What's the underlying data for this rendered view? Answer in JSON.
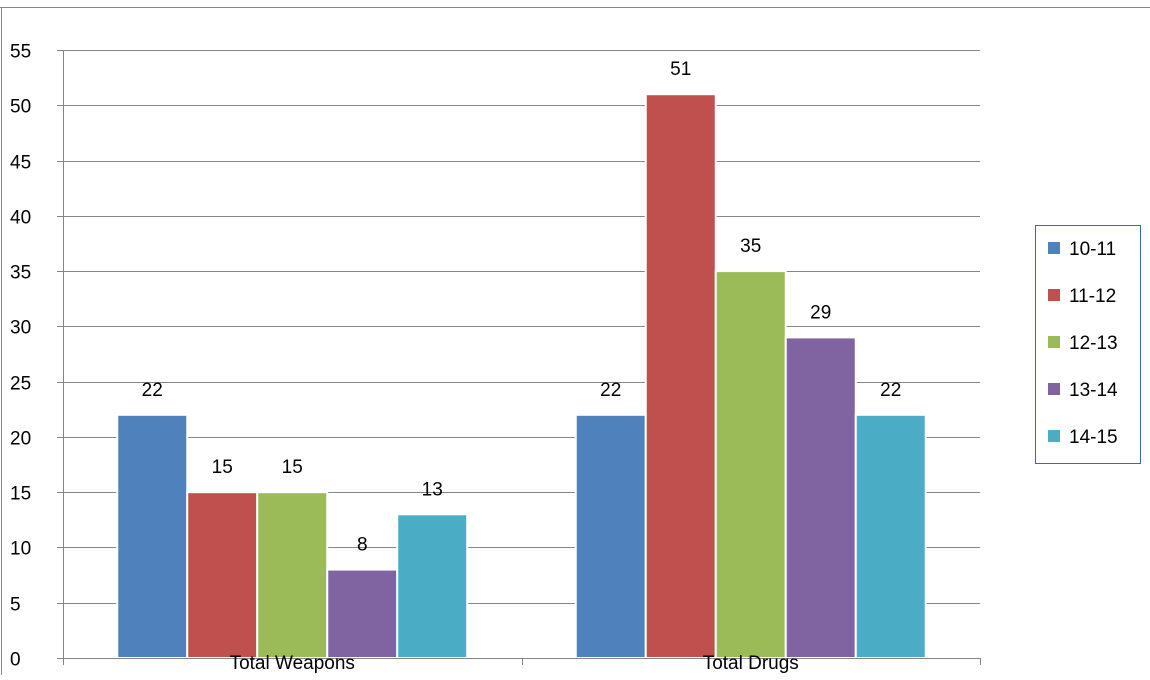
{
  "chart_data": {
    "type": "bar",
    "title": "",
    "xlabel": "",
    "ylabel": "",
    "categories": [
      "Total Weapons",
      "Total Drugs"
    ],
    "series": [
      {
        "name": "10-11",
        "values": [
          22,
          22
        ],
        "color": "#4F81BD"
      },
      {
        "name": "11-12",
        "values": [
          15,
          51
        ],
        "color": "#C0504D"
      },
      {
        "name": "12-13",
        "values": [
          15,
          35
        ],
        "color": "#9BBB59"
      },
      {
        "name": "13-14",
        "values": [
          8,
          29
        ],
        "color": "#8064A2"
      },
      {
        "name": "14-15",
        "values": [
          13,
          22
        ],
        "color": "#4BACC6"
      }
    ],
    "ylim": [
      0,
      55
    ],
    "yticks": [
      "0",
      "5",
      "10",
      "15",
      "20",
      "25",
      "30",
      "35",
      "40",
      "45",
      "50",
      "55"
    ],
    "grid": true,
    "data_labels": true,
    "legend_position": "right"
  }
}
